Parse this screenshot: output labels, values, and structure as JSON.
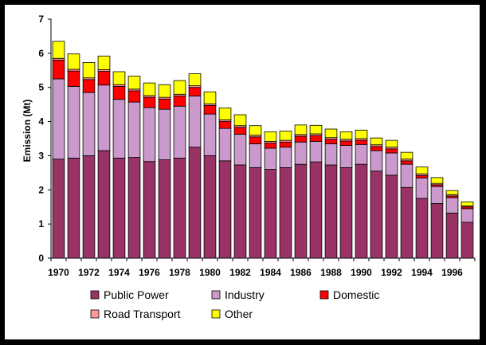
{
  "chart_data": {
    "type": "bar",
    "stacked": true,
    "title": "",
    "xlabel": "",
    "ylabel": "Emission (Mt)",
    "ylim": [
      0,
      7
    ],
    "yticks": [
      0,
      1,
      2,
      3,
      4,
      5,
      6,
      7
    ],
    "categories": [
      "1970",
      "1971",
      "1972",
      "1973",
      "1974",
      "1975",
      "1976",
      "1977",
      "1978",
      "1979",
      "1980",
      "1981",
      "1982",
      "1983",
      "1984",
      "1985",
      "1986",
      "1987",
      "1988",
      "1989",
      "1990",
      "1991",
      "1992",
      "1993",
      "1994",
      "1995",
      "1996",
      "1997"
    ],
    "xtick_labels": [
      "1970",
      "1972",
      "1974",
      "1976",
      "1978",
      "1980",
      "1982",
      "1984",
      "1986",
      "1988",
      "1990",
      "1992",
      "1994",
      "1996"
    ],
    "series": [
      {
        "name": "Public Power",
        "color": "#993366",
        "values": [
          2.9,
          2.93,
          3.0,
          3.15,
          2.93,
          2.95,
          2.83,
          2.88,
          2.93,
          3.25,
          3.0,
          2.85,
          2.73,
          2.65,
          2.6,
          2.65,
          2.75,
          2.82,
          2.73,
          2.65,
          2.75,
          2.55,
          2.43,
          2.07,
          1.75,
          1.6,
          1.32,
          1.05
        ]
      },
      {
        "name": "Industry",
        "color": "#CC99CC",
        "values": [
          2.35,
          2.1,
          1.85,
          1.92,
          1.72,
          1.62,
          1.58,
          1.48,
          1.52,
          1.5,
          1.22,
          0.95,
          0.9,
          0.7,
          0.62,
          0.6,
          0.65,
          0.6,
          0.62,
          0.65,
          0.58,
          0.6,
          0.65,
          0.68,
          0.6,
          0.5,
          0.45,
          0.4
        ]
      },
      {
        "name": "Domestic",
        "color": "#FF0000",
        "values": [
          0.55,
          0.45,
          0.38,
          0.4,
          0.38,
          0.33,
          0.3,
          0.3,
          0.3,
          0.25,
          0.25,
          0.2,
          0.2,
          0.2,
          0.15,
          0.15,
          0.17,
          0.17,
          0.13,
          0.13,
          0.12,
          0.12,
          0.12,
          0.1,
          0.07,
          0.05,
          0.05,
          0.05
        ]
      },
      {
        "name": "Road Transport",
        "color": "#FF9999",
        "values": [
          0.05,
          0.05,
          0.05,
          0.05,
          0.05,
          0.05,
          0.05,
          0.05,
          0.05,
          0.05,
          0.05,
          0.05,
          0.05,
          0.05,
          0.05,
          0.05,
          0.05,
          0.05,
          0.05,
          0.05,
          0.05,
          0.05,
          0.05,
          0.05,
          0.05,
          0.04,
          0.04,
          0.03
        ]
      },
      {
        "name": "Other",
        "color": "#FFFF00",
        "values": [
          0.5,
          0.45,
          0.45,
          0.4,
          0.38,
          0.38,
          0.37,
          0.37,
          0.4,
          0.35,
          0.35,
          0.35,
          0.32,
          0.28,
          0.28,
          0.27,
          0.28,
          0.25,
          0.25,
          0.22,
          0.25,
          0.2,
          0.2,
          0.2,
          0.2,
          0.17,
          0.12,
          0.12
        ]
      }
    ],
    "legend_position": "bottom"
  }
}
